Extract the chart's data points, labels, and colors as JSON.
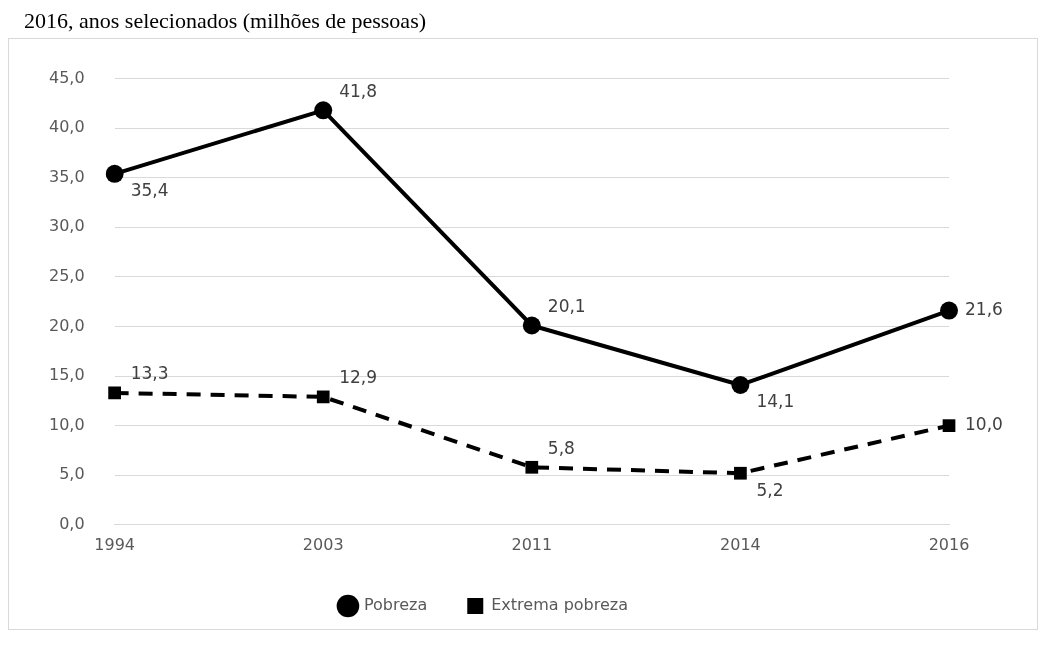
{
  "chart_data": {
    "type": "line",
    "title": "2016, anos selecionados (milhões de pessoas)",
    "categories": [
      "1994",
      "2003",
      "2011",
      "2014",
      "2016"
    ],
    "series": [
      {
        "name": "Pobreza",
        "color": "#000000",
        "values": [
          35.4,
          41.8,
          20.1,
          14.1,
          21.6
        ],
        "marker": "circle",
        "line_style": "solid",
        "value_labels": [
          "35,4",
          "41,8",
          "20,1",
          "14,1",
          "21,6"
        ]
      },
      {
        "name": "Extrema pobreza",
        "color": "#000000",
        "values": [
          13.3,
          12.9,
          5.8,
          5.2,
          10.0
        ],
        "marker": "square",
        "line_style": "dashed",
        "value_labels": [
          "13,3",
          "12,9",
          "5,8",
          "5,2",
          "10,0"
        ]
      }
    ],
    "ylim": [
      0,
      45
    ],
    "yticks": [
      {
        "value": 0,
        "label": "0,0"
      },
      {
        "value": 5,
        "label": "5,0"
      },
      {
        "value": 10,
        "label": "10,0"
      },
      {
        "value": 15,
        "label": "15,0"
      },
      {
        "value": 20,
        "label": "20,0"
      },
      {
        "value": 25,
        "label": "25,0"
      },
      {
        "value": 30,
        "label": "30,0"
      },
      {
        "value": 35,
        "label": "35,0"
      },
      {
        "value": 40,
        "label": "40,0"
      },
      {
        "value": 45,
        "label": "45,0"
      }
    ],
    "grid": "y",
    "legend": "bottom"
  }
}
